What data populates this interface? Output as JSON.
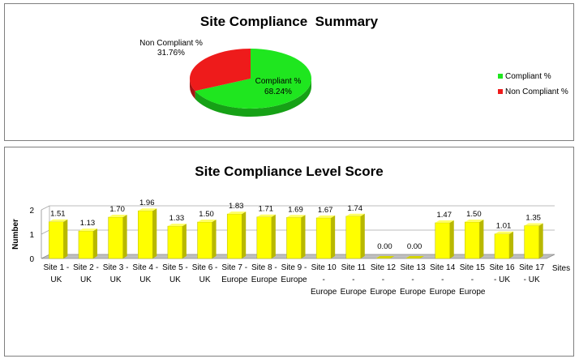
{
  "chart_data": [
    {
      "type": "pie",
      "title": "Site Compliance  Summary",
      "slices": [
        {
          "label": "Compliant %",
          "value": 68.24,
          "value_label": "68.24%",
          "color": "#1fe61f"
        },
        {
          "label": "Non Compliant %",
          "value": 31.76,
          "value_label": "31.76%",
          "color": "#ee1b1b"
        }
      ],
      "legend_position": "right",
      "style": "3d"
    },
    {
      "type": "bar",
      "title": "Site Compliance Level Score",
      "ylabel": "Number",
      "xlabel": "Sites",
      "ylim": [
        0,
        2
      ],
      "yticks": [
        "0",
        "1",
        "2"
      ],
      "grid": true,
      "style": "3d",
      "bar_color": "#ffff00",
      "categories": [
        [
          "Site 1 -",
          "UK"
        ],
        [
          "Site 2 -",
          "UK"
        ],
        [
          "Site 3 -",
          "UK"
        ],
        [
          "Site 4 -",
          "UK"
        ],
        [
          "Site 5 -",
          "UK"
        ],
        [
          "Site 6 -",
          "UK"
        ],
        [
          "Site 7 -",
          "Europe"
        ],
        [
          "Site 8 -",
          "Europe"
        ],
        [
          "Site 9 -",
          "Europe"
        ],
        [
          "Site 10",
          "-",
          "Europe"
        ],
        [
          "Site 11",
          "-",
          "Europe"
        ],
        [
          "Site 12",
          "-",
          "Europe"
        ],
        [
          "Site 13",
          "-",
          "Europe"
        ],
        [
          "Site 14",
          "-",
          "Europe"
        ],
        [
          "Site 15",
          "-",
          "Europe"
        ],
        [
          "Site 16",
          "- UK"
        ],
        [
          "Site 17",
          "- UK"
        ]
      ],
      "values": [
        1.51,
        1.13,
        1.7,
        1.96,
        1.33,
        1.5,
        1.83,
        1.71,
        1.69,
        1.67,
        1.74,
        0.0,
        0.0,
        1.47,
        1.5,
        1.01,
        1.35
      ],
      "value_labels": [
        "1.51",
        "1.13",
        "1.70",
        "1.96",
        "1.33",
        "1.50",
        "1.83",
        "1.71",
        "1.69",
        "1.67",
        "1.74",
        "0.00",
        "0.00",
        "1.47",
        "1.50",
        "1.01",
        "1.35"
      ]
    }
  ]
}
